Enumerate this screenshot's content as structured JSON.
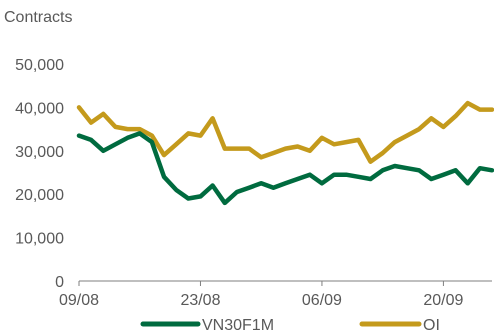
{
  "chart_data": {
    "type": "line",
    "title": "Contracts",
    "xlabel": "",
    "ylabel": "",
    "ylim": [
      0,
      50000
    ],
    "y_ticks": [
      "0",
      "10,000",
      "20,000",
      "30,000",
      "40,000",
      "50,000"
    ],
    "y_tick_values": [
      0,
      10000,
      20000,
      30000,
      40000,
      50000
    ],
    "x_ticks": [
      "09/08",
      "23/08",
      "06/09",
      "20/09"
    ],
    "x_tick_index": [
      0,
      10,
      20,
      30
    ],
    "grid": false,
    "legend": "bottom",
    "series": [
      {
        "name": "VN30F1M",
        "color": "#006B3F",
        "values": [
          33500,
          32500,
          30000,
          31500,
          33000,
          34000,
          32000,
          24000,
          21000,
          19000,
          19500,
          22000,
          18000,
          20500,
          21500,
          22500,
          21500,
          22500,
          23500,
          24500,
          22500,
          24500,
          24500,
          24000,
          23500,
          25500,
          26500,
          26000,
          25500,
          23500,
          24500,
          25500,
          22500,
          26000,
          25500
        ]
      },
      {
        "name": "OI",
        "color": "#C49A1C",
        "values": [
          40000,
          36500,
          38500,
          35500,
          35000,
          35000,
          33500,
          29000,
          31500,
          34000,
          33500,
          37500,
          30500,
          30500,
          30500,
          28500,
          29500,
          30500,
          31000,
          30000,
          33000,
          31500,
          32000,
          32500,
          27500,
          29500,
          32000,
          33500,
          35000,
          37500,
          35500,
          38000,
          41000,
          39500,
          39500
        ]
      }
    ]
  }
}
